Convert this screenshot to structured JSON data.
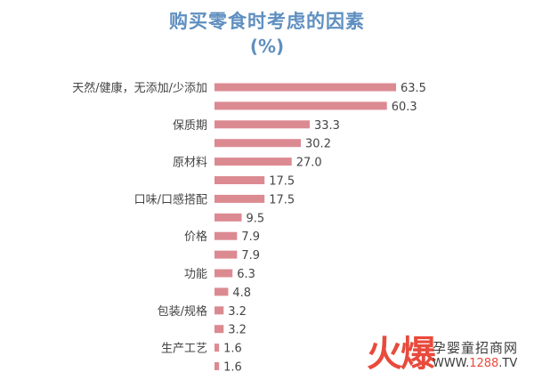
{
  "chart_data": {
    "type": "bar",
    "orientation": "horizontal",
    "title": "购买零食时考虑的因素",
    "subtitle": "(%)",
    "categories": [
      "天然/健康，无添加/少添加",
      "",
      "保质期",
      "",
      "原材料",
      "",
      "口味/口感搭配",
      "",
      "价格",
      "",
      "功能",
      "",
      "包装/规格",
      "",
      "生产工艺",
      ""
    ],
    "values": [
      63.5,
      60.3,
      33.3,
      30.2,
      27.0,
      17.5,
      17.5,
      9.5,
      7.9,
      7.9,
      6.3,
      4.8,
      3.2,
      3.2,
      1.6,
      1.6
    ],
    "value_labels": [
      "63.5",
      "60.3",
      "33.3",
      "30.2",
      "27.0",
      "17.5",
      "17.5",
      "9.5",
      "7.9",
      "7.9",
      "6.3",
      "4.8",
      "3.2",
      "3.2",
      "1.6",
      "1.6"
    ],
    "xlim": [
      0,
      63.5
    ],
    "grid": false,
    "colors": {
      "bar": "#dc8a92",
      "text": "#444444",
      "title": "#5f8fc0"
    }
  },
  "watermark": {
    "logo_text": "火爆",
    "brand": "孕婴童招商网",
    "url_prefix": "WWW.",
    "url_number": "1288",
    "url_suffix": ".TV"
  }
}
